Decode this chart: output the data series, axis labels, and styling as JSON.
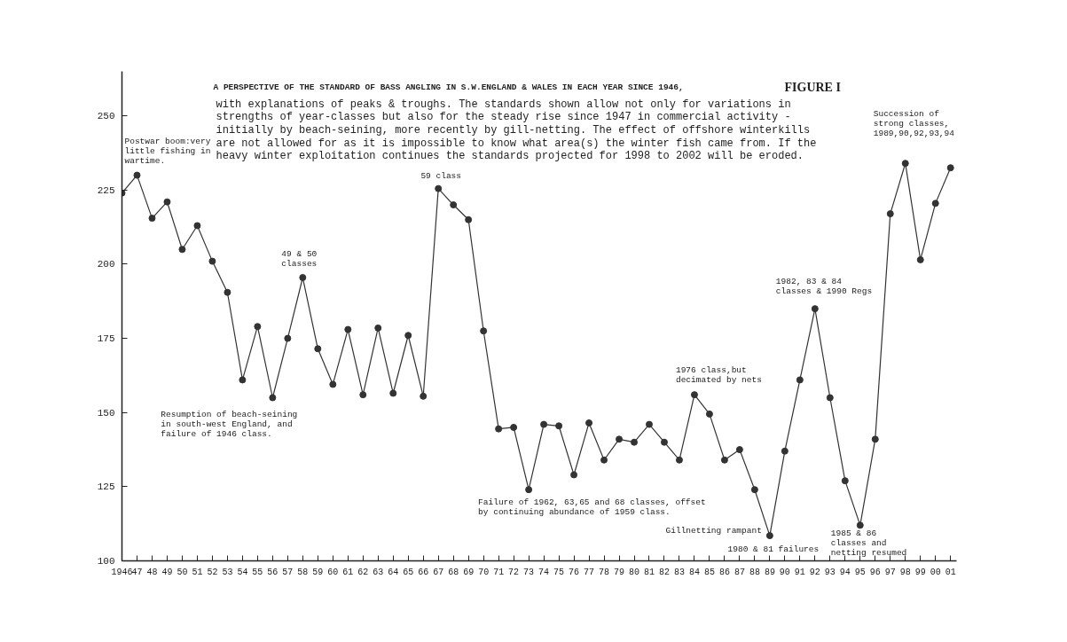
{
  "chart_data": {
    "type": "line",
    "title": "A PERSPECTIVE OF THE STANDARD OF BASS ANGLING IN S.W.ENGLAND & WALES IN EACH YEAR SINCE 1946,",
    "subtitle": "with explanations of peaks & troughs. The standards shown allow not only for variations in\nstrengths of year-classes but also for the steady rise since 1947 in commercial activity -\ninitially by beach-seining, more recently by gill-netting. The effect of offshore winterkills\nare not allowed for as it is impossible to know what area(s) the winter fish came from. If the\nheavy winter exploitation continues the  standards projected for 1998 to 2002 will be eroded.",
    "x": [
      1946,
      1947,
      1948,
      1949,
      1950,
      1951,
      1952,
      1953,
      1954,
      1955,
      1956,
      1957,
      1958,
      1959,
      1960,
      1961,
      1962,
      1963,
      1964,
      1965,
      1966,
      1967,
      1968,
      1969,
      1970,
      1971,
      1972,
      1973,
      1974,
      1975,
      1976,
      1977,
      1978,
      1979,
      1980,
      1981,
      1982,
      1983,
      1984,
      1985,
      1986,
      1987,
      1988,
      1989,
      1990,
      1991,
      1992,
      1993,
      1994,
      1995,
      1996,
      1997,
      1998,
      1999,
      2000,
      2001
    ],
    "series": [
      {
        "color": "#333333",
        "values": [
          224,
          230,
          215.5,
          221,
          205,
          213,
          201,
          190.5,
          161,
          179,
          155,
          175,
          195.5,
          171.5,
          159.5,
          178,
          156,
          178.5,
          156.5,
          176,
          155.5,
          225.5,
          220,
          215,
          177.5,
          144.5,
          145,
          124,
          146,
          145.5,
          129,
          146.5,
          134,
          141,
          140,
          146,
          140,
          134,
          156,
          149.5,
          134,
          137.5,
          124,
          108.5,
          137,
          161,
          185,
          155,
          127,
          112,
          141,
          217,
          234,
          201.5,
          220.5,
          232.5
        ]
      }
    ],
    "xlim": [
      1946,
      2001.4
    ],
    "ylim": [
      100,
      265
    ],
    "xticks": [
      {
        "value": 1946,
        "label": "1946"
      },
      {
        "value": 1947,
        "label": "47"
      },
      {
        "value": 1948,
        "label": "48"
      },
      {
        "value": 1949,
        "label": "49"
      },
      {
        "value": 1950,
        "label": "50"
      },
      {
        "value": 1951,
        "label": "51"
      },
      {
        "value": 1952,
        "label": "52"
      },
      {
        "value": 1953,
        "label": "53"
      },
      {
        "value": 1954,
        "label": "54"
      },
      {
        "value": 1955,
        "label": "55"
      },
      {
        "value": 1956,
        "label": "56"
      },
      {
        "value": 1957,
        "label": "57"
      },
      {
        "value": 1958,
        "label": "58"
      },
      {
        "value": 1959,
        "label": "59"
      },
      {
        "value": 1960,
        "label": "60"
      },
      {
        "value": 1961,
        "label": "61"
      },
      {
        "value": 1962,
        "label": "62"
      },
      {
        "value": 1963,
        "label": "63"
      },
      {
        "value": 1964,
        "label": "64"
      },
      {
        "value": 1965,
        "label": "65"
      },
      {
        "value": 1966,
        "label": "66"
      },
      {
        "value": 1967,
        "label": "67"
      },
      {
        "value": 1968,
        "label": "68"
      },
      {
        "value": 1969,
        "label": "69"
      },
      {
        "value": 1970,
        "label": "70"
      },
      {
        "value": 1971,
        "label": "71"
      },
      {
        "value": 1972,
        "label": "72"
      },
      {
        "value": 1973,
        "label": "73"
      },
      {
        "value": 1974,
        "label": "74"
      },
      {
        "value": 1975,
        "label": "75"
      },
      {
        "value": 1976,
        "label": "76"
      },
      {
        "value": 1977,
        "label": "77"
      },
      {
        "value": 1978,
        "label": "78"
      },
      {
        "value": 1979,
        "label": "79"
      },
      {
        "value": 1980,
        "label": "80"
      },
      {
        "value": 1981,
        "label": "81"
      },
      {
        "value": 1982,
        "label": "82"
      },
      {
        "value": 1983,
        "label": "83"
      },
      {
        "value": 1984,
        "label": "84"
      },
      {
        "value": 1985,
        "label": "85"
      },
      {
        "value": 1986,
        "label": "86"
      },
      {
        "value": 1987,
        "label": "87"
      },
      {
        "value": 1988,
        "label": "88"
      },
      {
        "value": 1989,
        "label": "89"
      },
      {
        "value": 1990,
        "label": "90"
      },
      {
        "value": 1991,
        "label": "91"
      },
      {
        "value": 1992,
        "label": "92"
      },
      {
        "value": 1993,
        "label": "93"
      },
      {
        "value": 1994,
        "label": "94"
      },
      {
        "value": 1995,
        "label": "95"
      },
      {
        "value": 1996,
        "label": "96"
      },
      {
        "value": 1997,
        "label": "97"
      },
      {
        "value": 1998,
        "label": "98"
      },
      {
        "value": 1999,
        "label": "99"
      },
      {
        "value": 2000,
        "label": "00"
      },
      {
        "value": 2001,
        "label": "01"
      }
    ],
    "yticks": [
      100,
      125,
      150,
      175,
      200,
      225,
      250
    ],
    "marker": "circle",
    "line_style": "solid",
    "annotations": [
      "FIGURE I",
      {
        "text": "Postwar boom:very\nlittle fishing in\nwartime.",
        "x": 1947,
        "y": 230
      },
      {
        "text": "49 & 50\nclasses",
        "x": 1958,
        "y": 195.5
      },
      {
        "text": "59 class",
        "x": 1967,
        "y": 225.5
      },
      {
        "text": "Resumption of beach-seining\nin south-west England, and\nfailure of 1946 class.",
        "x": 1956,
        "y": 155
      },
      {
        "text": "Failure of 1962, 63,65 and 68 classes, offset\nby continuing abundance of 1959 class.",
        "x": 1973,
        "y": 124
      },
      {
        "text": "1976 class,but\ndecimated by nets",
        "x": 1984,
        "y": 156
      },
      {
        "text": "Gillnetting rampant",
        "x": 1989,
        "y": 108.5
      },
      {
        "text": "1980 & 81 failures",
        "x": 1989,
        "y": 108.5
      },
      {
        "text": "1982, 83 & 84\nclasses & 1990 Regs",
        "x": 1992,
        "y": 185
      },
      {
        "text": "1985 & 86\nclasses and\nnetting resumed",
        "x": 1995,
        "y": 112
      },
      {
        "text": "Succession of\nstrong classes,\n1989,90,92,93,94",
        "x": 1998,
        "y": 234
      }
    ]
  }
}
